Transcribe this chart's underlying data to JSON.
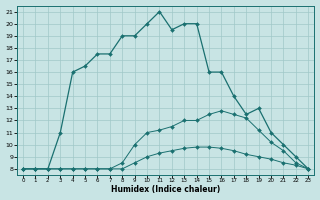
{
  "xlabel": "Humidex (Indice chaleur)",
  "xlim": [
    -0.5,
    23.5
  ],
  "ylim": [
    7.5,
    21.5
  ],
  "xticks": [
    0,
    1,
    2,
    3,
    4,
    5,
    6,
    7,
    8,
    9,
    10,
    11,
    12,
    13,
    14,
    15,
    16,
    17,
    18,
    19,
    20,
    21,
    22,
    23
  ],
  "yticks": [
    8,
    9,
    10,
    11,
    12,
    13,
    14,
    15,
    16,
    17,
    18,
    19,
    20,
    21
  ],
  "bg_color": "#c8e4e4",
  "grid_color": "#a0c8c8",
  "line_color": "#1a7070",
  "line1": {
    "x": [
      0,
      1,
      2,
      3,
      4,
      5,
      6,
      7,
      8,
      9,
      10,
      11,
      12,
      13,
      14,
      15,
      16,
      17,
      18,
      19,
      20,
      21,
      22,
      23
    ],
    "y": [
      8,
      8,
      8,
      8,
      8,
      8,
      8,
      8,
      8,
      8.5,
      9,
      9.3,
      9.5,
      9.7,
      9.8,
      9.8,
      9.7,
      9.5,
      9.2,
      9,
      8.8,
      8.5,
      8.3,
      8
    ]
  },
  "line2": {
    "x": [
      0,
      1,
      2,
      3,
      4,
      5,
      6,
      7,
      8,
      9,
      10,
      11,
      12,
      13,
      14,
      15,
      16,
      17,
      18,
      19,
      20,
      21,
      22,
      23
    ],
    "y": [
      8,
      8,
      8,
      8,
      8,
      8,
      8,
      8,
      8.5,
      10,
      11,
      11.2,
      11.5,
      12,
      12,
      12.5,
      12.8,
      12.5,
      12.2,
      11.2,
      10.2,
      9.5,
      8.5,
      8
    ]
  },
  "line3": {
    "x": [
      0,
      1,
      2,
      3,
      4,
      5,
      6,
      7,
      8,
      9,
      10,
      11,
      12,
      13,
      14,
      15,
      16,
      17,
      18,
      19,
      20,
      21,
      22,
      23
    ],
    "y": [
      8,
      8,
      8,
      11,
      16,
      16.5,
      17.5,
      17.5,
      19,
      19,
      20,
      21,
      19.5,
      20,
      20,
      16,
      16,
      14,
      12.5,
      13,
      11,
      10,
      9,
      8
    ]
  }
}
